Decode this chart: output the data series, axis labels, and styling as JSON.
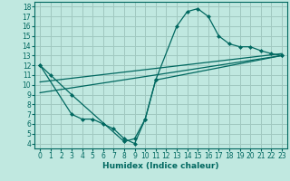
{
  "title": "",
  "xlabel": "Humidex (Indice chaleur)",
  "ylabel": "",
  "bg_color": "#c0e8e0",
  "grid_color": "#a0c8c0",
  "line_color": "#006860",
  "xlim": [
    -0.5,
    23.5
  ],
  "ylim": [
    3.5,
    18.5
  ],
  "xticks": [
    0,
    1,
    2,
    3,
    4,
    5,
    6,
    7,
    8,
    9,
    10,
    11,
    12,
    13,
    14,
    15,
    16,
    17,
    18,
    19,
    20,
    21,
    22,
    23
  ],
  "yticks": [
    4,
    5,
    6,
    7,
    8,
    9,
    10,
    11,
    12,
    13,
    14,
    15,
    16,
    17,
    18
  ],
  "line1_x": [
    0,
    1,
    3,
    8,
    9,
    10,
    11,
    13,
    14,
    15,
    16,
    17,
    18,
    19,
    20,
    21,
    22,
    23
  ],
  "line1_y": [
    12,
    11,
    9,
    4.2,
    4.5,
    6.5,
    10.5,
    16.0,
    17.5,
    17.8,
    17.0,
    15.0,
    14.2,
    13.9,
    13.9,
    13.5,
    13.2,
    13.0
  ],
  "line2_x": [
    0,
    3,
    4,
    5,
    6,
    7,
    8,
    9,
    10,
    11,
    23
  ],
  "line2_y": [
    12,
    7,
    6.5,
    6.5,
    6.0,
    5.5,
    4.5,
    4.0,
    6.5,
    10.5,
    13.0
  ],
  "line3_x": [
    0,
    23
  ],
  "line3_y": [
    9.2,
    13.0
  ],
  "line4_x": [
    0,
    23
  ],
  "line4_y": [
    10.3,
    13.2
  ]
}
